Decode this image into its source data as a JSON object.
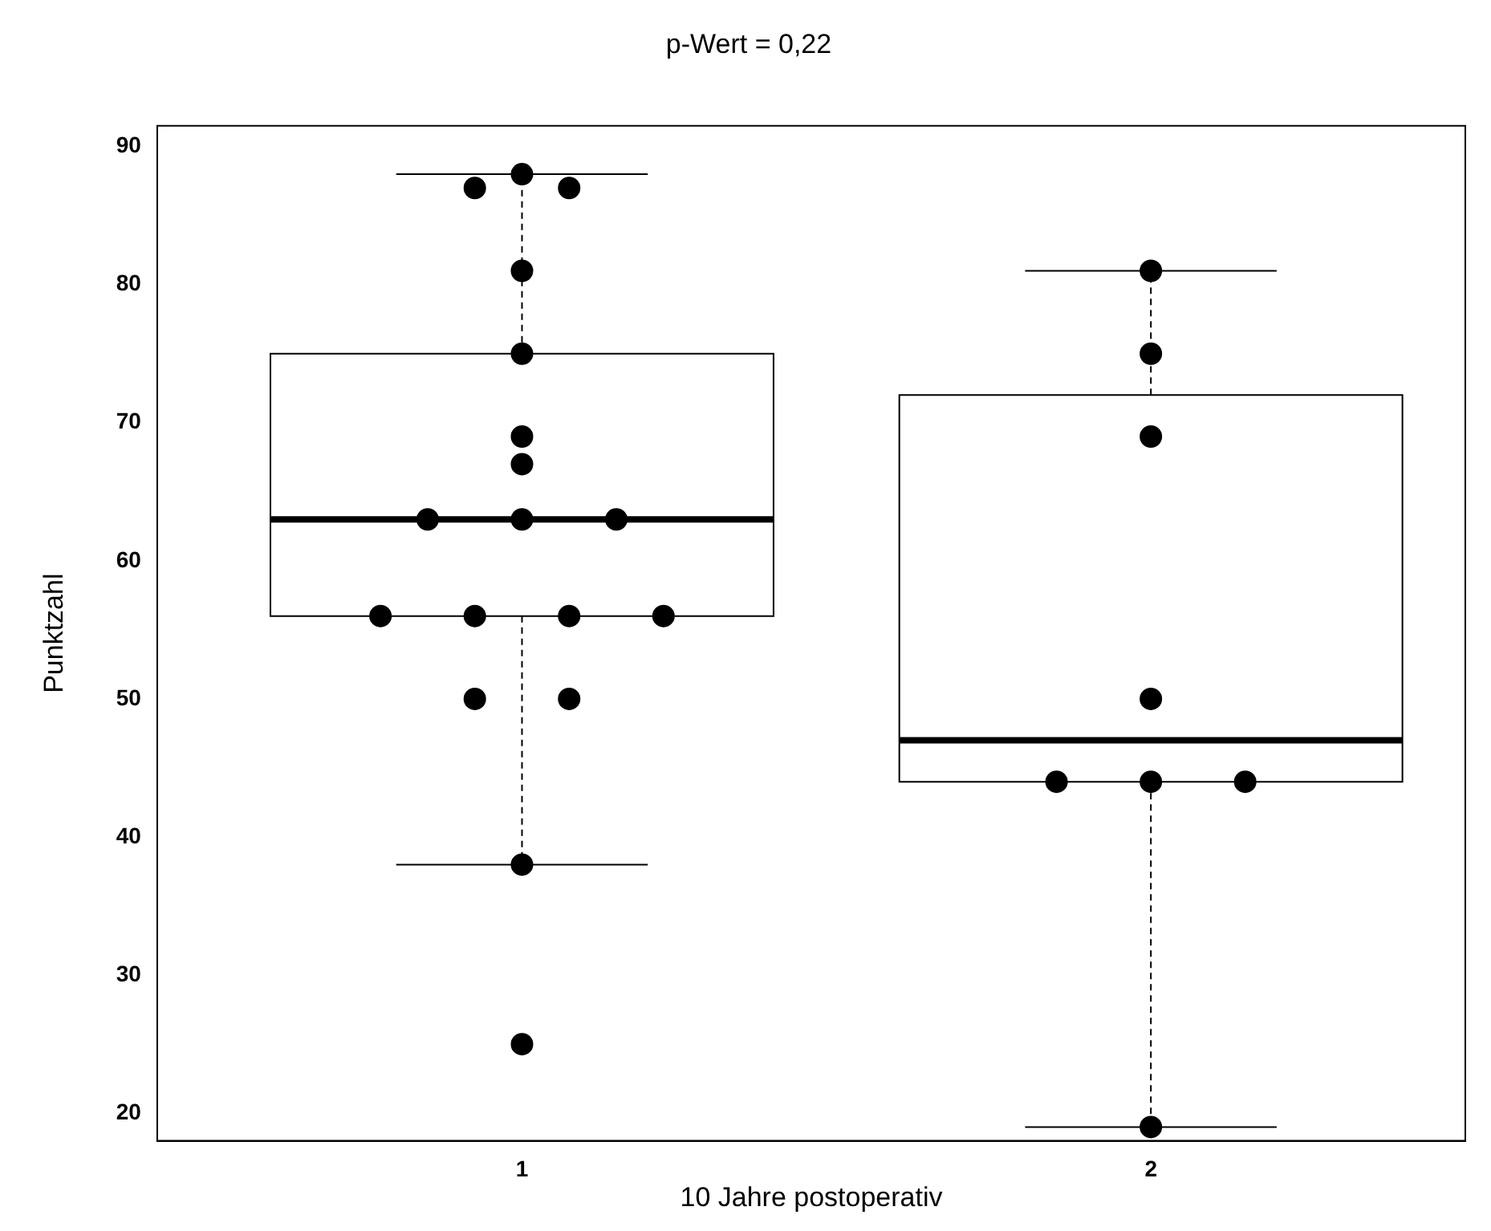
{
  "chart_data": {
    "type": "box",
    "title": "p-Wert = 0,22",
    "xlabel": "10 Jahre postoperativ",
    "ylabel": "Punktzahl",
    "categories": [
      "1",
      "2"
    ],
    "boxes": [
      {
        "low": 38,
        "q1": 56,
        "median": 63,
        "q3": 75,
        "high": 88
      },
      {
        "low": 19,
        "q1": 44,
        "median": 47,
        "q3": 72,
        "high": 81
      }
    ],
    "series": [
      {
        "type": "scatter",
        "color": "#000000",
        "x": [
          "1",
          "1",
          "1",
          "1",
          "1",
          "1",
          "1",
          "1",
          "1",
          "1",
          "1",
          "1",
          "1",
          "1",
          "1",
          "1",
          "1",
          "1",
          "2",
          "2",
          "2",
          "2",
          "2",
          "2",
          "2",
          "2"
        ],
        "values": [
          88,
          87,
          87,
          81,
          75,
          69,
          67,
          63,
          63,
          63,
          56,
          56,
          56,
          56,
          50,
          50,
          38,
          25,
          81,
          75,
          69,
          50,
          44,
          44,
          44,
          19
        ]
      }
    ],
    "ylim": [
      18,
      91.5
    ],
    "yticks": [
      20,
      30,
      40,
      50,
      60,
      70,
      80,
      90
    ],
    "grid": false,
    "marker": "circle"
  }
}
